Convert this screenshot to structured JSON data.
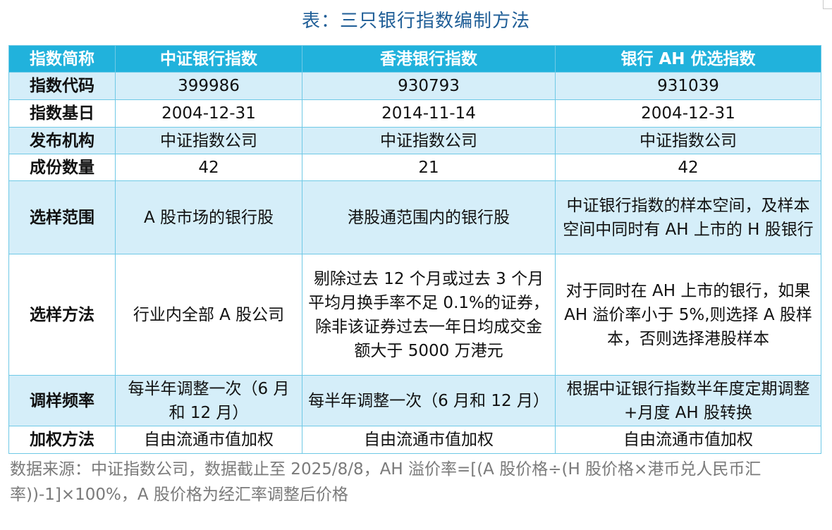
{
  "title": "表：三只银行指数编制方法",
  "table": {
    "headers": [
      "指数简称",
      "中证银行指数",
      "香港银行指数",
      "银行 AH 优选指数"
    ],
    "rows": [
      {
        "label": "指数代码",
        "cells": [
          "399986",
          "930793",
          "931039"
        ]
      },
      {
        "label": "指数基日",
        "cells": [
          "2004-12-31",
          "2014-11-14",
          "2004-12-31"
        ]
      },
      {
        "label": "发布机构",
        "cells": [
          "中证指数公司",
          "中证指数公司",
          "中证指数公司"
        ]
      },
      {
        "label": "成份数量",
        "cells": [
          "42",
          "21",
          "42"
        ]
      },
      {
        "label": "选样范围",
        "cells": [
          "A 股市场的银行股",
          "港股通范围内的银行股",
          "中证银行指数的样本空间，及样本空间中同时有 AH 上市的 H 股银行"
        ]
      },
      {
        "label": "选样方法",
        "cells": [
          "行业内全部 A 股公司",
          "剔除过去 12 个月或过去 3 个月平均月换手率不足 0.1%的证券，除非该证券过去一年日均成交金额大于 5000 万港元",
          "对于同时在 AH 上市的银行，如果 AH 溢价率小于 5%,则选择 A 股样本，否则选择港股样本"
        ]
      },
      {
        "label": "调样频率",
        "cells": [
          "每半年调整一次（6 月和 12 月）",
          "每半年调整一次（6 月和 12 月）",
          "根据中证银行指数半年度定期调整+月度 AH 股转换"
        ]
      },
      {
        "label": "加权方法",
        "cells": [
          "自由流通市值加权",
          "自由流通市值加权",
          "自由流通市值加权"
        ]
      }
    ]
  },
  "footnote": "数据来源：中证指数公司，数据截止至 2025/8/8，AH 溢价率=[(A 股价格÷(H 股价格×港币兑人民币汇率))-1]×100%，A 股价格为经汇率调整后价格"
}
